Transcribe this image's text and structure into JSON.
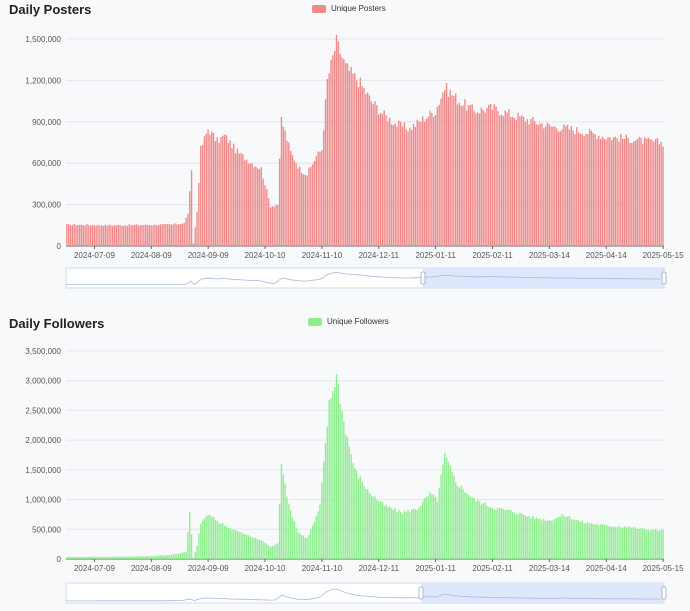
{
  "charts": [
    {
      "title": "Daily Posters",
      "legend_label": "Unique Posters",
      "color": "#f08a8a",
      "slider_fill": "#d6e1fb"
    },
    {
      "title": "Daily Followers",
      "legend_label": "Unique Followers",
      "color": "#90ee90",
      "slider_fill": "#d6e1fb"
    }
  ],
  "chart_data": [
    {
      "type": "bar",
      "title": "Daily Posters",
      "legend": "Unique Posters",
      "legend_position": "top-center",
      "grid": true,
      "ylim": [
        0,
        1500000
      ],
      "yticks": [
        "0",
        "300,000",
        "600,000",
        "900,000",
        "1,200,000",
        "1,500,000"
      ],
      "xticks": [
        "2024-07-09",
        "2024-08-09",
        "2024-09-09",
        "2024-10-10",
        "2024-11-10",
        "2024-12-11",
        "2025-01-11",
        "2025-02-11",
        "2025-03-14",
        "2025-04-14",
        "2025-05-15"
      ],
      "x_start": "2024-06-24",
      "x_end": "2025-05-15",
      "series": [
        {
          "name": "Unique Posters",
          "keyframes": [
            [
              "2024-06-24",
              155000
            ],
            [
              "2024-07-20",
              150000
            ],
            [
              "2024-08-20",
              155000
            ],
            [
              "2024-08-27",
              165000
            ],
            [
              "2024-08-29",
              240000
            ],
            [
              "2024-08-31",
              530000
            ],
            [
              "2024-09-01",
              20000
            ],
            [
              "2024-09-03",
              250000
            ],
            [
              "2024-09-05",
              700000
            ],
            [
              "2024-09-09",
              850000
            ],
            [
              "2024-09-14",
              760000
            ],
            [
              "2024-09-18",
              800000
            ],
            [
              "2024-09-25",
              680000
            ],
            [
              "2024-10-01",
              620000
            ],
            [
              "2024-10-08",
              560000
            ],
            [
              "2024-10-13",
              290000
            ],
            [
              "2024-10-17",
              300000
            ],
            [
              "2024-10-19",
              920000
            ],
            [
              "2024-10-24",
              680000
            ],
            [
              "2024-10-29",
              560000
            ],
            [
              "2024-11-02",
              520000
            ],
            [
              "2024-11-07",
              650000
            ],
            [
              "2024-11-10",
              700000
            ],
            [
              "2024-11-13",
              1200000
            ],
            [
              "2024-11-18",
              1480000
            ],
            [
              "2024-11-23",
              1300000
            ],
            [
              "2024-12-01",
              1180000
            ],
            [
              "2024-12-07",
              1050000
            ],
            [
              "2024-12-14",
              950000
            ],
            [
              "2024-12-21",
              880000
            ],
            [
              "2024-12-28",
              850000
            ],
            [
              "2025-01-04",
              920000
            ],
            [
              "2025-01-11",
              980000
            ],
            [
              "2025-01-16",
              1150000
            ],
            [
              "2025-01-24",
              1050000
            ],
            [
              "2025-02-01",
              980000
            ],
            [
              "2025-02-11",
              1000000
            ],
            [
              "2025-02-20",
              960000
            ],
            [
              "2025-03-01",
              920000
            ],
            [
              "2025-03-14",
              870000
            ],
            [
              "2025-03-25",
              850000
            ],
            [
              "2025-04-05",
              820000
            ],
            [
              "2025-04-14",
              790000
            ],
            [
              "2025-04-25",
              780000
            ],
            [
              "2025-05-05",
              760000
            ],
            [
              "2025-05-15",
              750000
            ]
          ]
        }
      ]
    },
    {
      "type": "bar",
      "title": "Daily Followers",
      "legend": "Unique Followers",
      "legend_position": "top-center",
      "grid": true,
      "ylim": [
        0,
        3500000
      ],
      "yticks": [
        "0",
        "500,000",
        "1,000,000",
        "1,500,000",
        "2,000,000",
        "2,500,000",
        "3,000,000",
        "3,500,000"
      ],
      "xticks": [
        "2024-07-09",
        "2024-08-09",
        "2024-09-09",
        "2024-10-10",
        "2024-11-10",
        "2024-12-11",
        "2025-01-11",
        "2025-02-11",
        "2025-03-14",
        "2025-04-14",
        "2025-05-15"
      ],
      "x_start": "2024-06-24",
      "x_end": "2025-05-15",
      "series": [
        {
          "name": "Unique Followers",
          "keyframes": [
            [
              "2024-06-24",
              35000
            ],
            [
              "2024-07-25",
              40000
            ],
            [
              "2024-08-10",
              50000
            ],
            [
              "2024-08-20",
              70000
            ],
            [
              "2024-08-28",
              120000
            ],
            [
              "2024-08-30",
              780000
            ],
            [
              "2024-09-01",
              20000
            ],
            [
              "2024-09-03",
              220000
            ],
            [
              "2024-09-05",
              600000
            ],
            [
              "2024-09-09",
              750000
            ],
            [
              "2024-09-16",
              600000
            ],
            [
              "2024-09-24",
              480000
            ],
            [
              "2024-10-02",
              380000
            ],
            [
              "2024-10-09",
              300000
            ],
            [
              "2024-10-13",
              200000
            ],
            [
              "2024-10-17",
              260000
            ],
            [
              "2024-10-19",
              1650000
            ],
            [
              "2024-10-23",
              900000
            ],
            [
              "2024-10-28",
              450000
            ],
            [
              "2024-11-02",
              350000
            ],
            [
              "2024-11-07",
              700000
            ],
            [
              "2024-11-09",
              900000
            ],
            [
              "2024-11-11",
              1600000
            ],
            [
              "2024-11-14",
              2600000
            ],
            [
              "2024-11-18",
              3100000
            ],
            [
              "2024-11-22",
              2300000
            ],
            [
              "2024-11-28",
              1500000
            ],
            [
              "2024-12-05",
              1150000
            ],
            [
              "2024-12-14",
              900000
            ],
            [
              "2024-12-24",
              780000
            ],
            [
              "2025-01-01",
              850000
            ],
            [
              "2025-01-08",
              1100000
            ],
            [
              "2025-01-12",
              1000000
            ],
            [
              "2025-01-16",
              1750000
            ],
            [
              "2025-01-22",
              1300000
            ],
            [
              "2025-02-01",
              1000000
            ],
            [
              "2025-02-11",
              870000
            ],
            [
              "2025-02-22",
              800000
            ],
            [
              "2025-03-05",
              700000
            ],
            [
              "2025-03-14",
              650000
            ],
            [
              "2025-03-22",
              740000
            ],
            [
              "2025-04-01",
              620000
            ],
            [
              "2025-04-14",
              560000
            ],
            [
              "2025-04-26",
              540000
            ],
            [
              "2025-05-05",
              500000
            ],
            [
              "2025-05-15",
              480000
            ]
          ]
        }
      ]
    }
  ]
}
